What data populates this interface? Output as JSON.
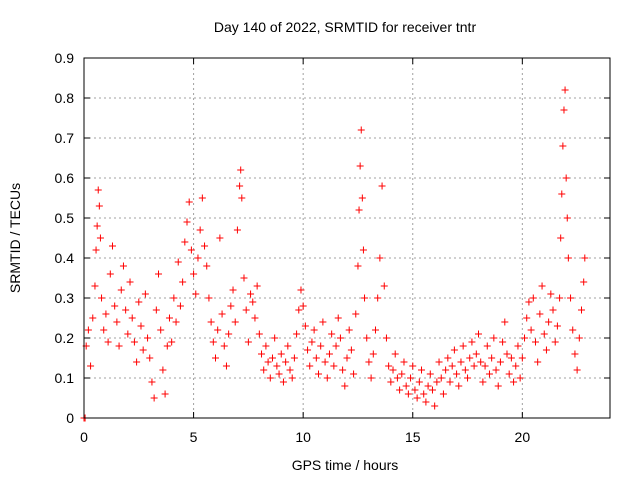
{
  "chart_data": {
    "type": "scatter",
    "title": "Day 140 of 2022, SRMTID for receiver tntr",
    "xlabel": "GPS time / hours",
    "ylabel": "SRMTID / TECUs",
    "xlim": [
      0,
      24
    ],
    "ylim": [
      0,
      0.9
    ],
    "xticks": [
      0,
      5,
      10,
      15,
      20
    ],
    "xtick_labels": [
      "0",
      "5",
      "10",
      "15",
      "20"
    ],
    "yticks": [
      0,
      0.1,
      0.2,
      0.3,
      0.4,
      0.5,
      0.6,
      0.7,
      0.8,
      0.9
    ],
    "ytick_labels": [
      "0",
      "0.1",
      "0.2",
      "0.3",
      "0.4",
      "0.5",
      "0.6",
      "0.7",
      "0.8",
      "0.9"
    ],
    "grid": true,
    "marker": "+",
    "series": [
      {
        "name": "SRMTID",
        "color": "#ff0000",
        "points": [
          [
            0.0,
            0.0
          ],
          [
            0.05,
            0.0
          ],
          [
            0.1,
            0.18
          ],
          [
            0.2,
            0.22
          ],
          [
            0.3,
            0.13
          ],
          [
            0.4,
            0.25
          ],
          [
            0.5,
            0.33
          ],
          [
            0.55,
            0.42
          ],
          [
            0.6,
            0.48
          ],
          [
            0.65,
            0.57
          ],
          [
            0.7,
            0.53
          ],
          [
            0.75,
            0.45
          ],
          [
            0.8,
            0.3
          ],
          [
            0.9,
            0.22
          ],
          [
            1.0,
            0.26
          ],
          [
            1.1,
            0.19
          ],
          [
            1.2,
            0.36
          ],
          [
            1.3,
            0.43
          ],
          [
            1.4,
            0.28
          ],
          [
            1.5,
            0.24
          ],
          [
            1.6,
            0.18
          ],
          [
            1.7,
            0.32
          ],
          [
            1.8,
            0.38
          ],
          [
            1.9,
            0.27
          ],
          [
            2.0,
            0.21
          ],
          [
            2.1,
            0.34
          ],
          [
            2.2,
            0.25
          ],
          [
            2.3,
            0.19
          ],
          [
            2.4,
            0.14
          ],
          [
            2.5,
            0.29
          ],
          [
            2.6,
            0.23
          ],
          [
            2.7,
            0.17
          ],
          [
            2.8,
            0.31
          ],
          [
            2.9,
            0.2
          ],
          [
            3.0,
            0.15
          ],
          [
            3.1,
            0.09
          ],
          [
            3.2,
            0.05
          ],
          [
            3.3,
            0.27
          ],
          [
            3.4,
            0.36
          ],
          [
            3.5,
            0.22
          ],
          [
            3.6,
            0.12
          ],
          [
            3.7,
            0.06
          ],
          [
            3.8,
            0.18
          ],
          [
            3.9,
            0.25
          ],
          [
            4.0,
            0.19
          ],
          [
            4.1,
            0.3
          ],
          [
            4.2,
            0.24
          ],
          [
            4.3,
            0.39
          ],
          [
            4.4,
            0.28
          ],
          [
            4.5,
            0.34
          ],
          [
            4.6,
            0.44
          ],
          [
            4.7,
            0.49
          ],
          [
            4.8,
            0.54
          ],
          [
            4.9,
            0.42
          ],
          [
            5.0,
            0.36
          ],
          [
            5.1,
            0.31
          ],
          [
            5.2,
            0.4
          ],
          [
            5.3,
            0.47
          ],
          [
            5.4,
            0.55
          ],
          [
            5.5,
            0.43
          ],
          [
            5.6,
            0.38
          ],
          [
            5.7,
            0.3
          ],
          [
            5.8,
            0.24
          ],
          [
            5.9,
            0.19
          ],
          [
            6.0,
            0.15
          ],
          [
            6.1,
            0.22
          ],
          [
            6.2,
            0.45
          ],
          [
            6.3,
            0.26
          ],
          [
            6.4,
            0.18
          ],
          [
            6.5,
            0.13
          ],
          [
            6.6,
            0.21
          ],
          [
            6.7,
            0.28
          ],
          [
            6.8,
            0.32
          ],
          [
            6.9,
            0.24
          ],
          [
            7.0,
            0.47
          ],
          [
            7.1,
            0.58
          ],
          [
            7.15,
            0.62
          ],
          [
            7.2,
            0.55
          ],
          [
            7.3,
            0.35
          ],
          [
            7.4,
            0.27
          ],
          [
            7.5,
            0.19
          ],
          [
            7.6,
            0.31
          ],
          [
            7.7,
            0.29
          ],
          [
            7.8,
            0.25
          ],
          [
            7.9,
            0.33
          ],
          [
            8.0,
            0.21
          ],
          [
            8.1,
            0.16
          ],
          [
            8.2,
            0.12
          ],
          [
            8.3,
            0.18
          ],
          [
            8.4,
            0.14
          ],
          [
            8.5,
            0.1
          ],
          [
            8.6,
            0.15
          ],
          [
            8.7,
            0.2
          ],
          [
            8.8,
            0.13
          ],
          [
            8.9,
            0.11
          ],
          [
            9.0,
            0.16
          ],
          [
            9.1,
            0.09
          ],
          [
            9.2,
            0.14
          ],
          [
            9.3,
            0.18
          ],
          [
            9.4,
            0.12
          ],
          [
            9.5,
            0.1
          ],
          [
            9.6,
            0.15
          ],
          [
            9.7,
            0.21
          ],
          [
            9.8,
            0.27
          ],
          [
            9.9,
            0.32
          ],
          [
            10.0,
            0.28
          ],
          [
            10.1,
            0.23
          ],
          [
            10.2,
            0.17
          ],
          [
            10.3,
            0.13
          ],
          [
            10.4,
            0.19
          ],
          [
            10.5,
            0.22
          ],
          [
            10.6,
            0.15
          ],
          [
            10.7,
            0.11
          ],
          [
            10.8,
            0.18
          ],
          [
            10.9,
            0.24
          ],
          [
            11.0,
            0.14
          ],
          [
            11.1,
            0.1
          ],
          [
            11.2,
            0.16
          ],
          [
            11.3,
            0.21
          ],
          [
            11.4,
            0.13
          ],
          [
            11.5,
            0.18
          ],
          [
            11.6,
            0.25
          ],
          [
            11.7,
            0.2
          ],
          [
            11.8,
            0.12
          ],
          [
            11.9,
            0.08
          ],
          [
            12.0,
            0.15
          ],
          [
            12.1,
            0.22
          ],
          [
            12.2,
            0.17
          ],
          [
            12.3,
            0.11
          ],
          [
            12.4,
            0.26
          ],
          [
            12.5,
            0.38
          ],
          [
            12.55,
            0.52
          ],
          [
            12.6,
            0.63
          ],
          [
            12.65,
            0.72
          ],
          [
            12.7,
            0.55
          ],
          [
            12.75,
            0.42
          ],
          [
            12.8,
            0.3
          ],
          [
            12.9,
            0.2
          ],
          [
            13.0,
            0.14
          ],
          [
            13.1,
            0.1
          ],
          [
            13.2,
            0.16
          ],
          [
            13.3,
            0.22
          ],
          [
            13.4,
            0.3
          ],
          [
            13.5,
            0.4
          ],
          [
            13.6,
            0.58
          ],
          [
            13.7,
            0.33
          ],
          [
            13.8,
            0.2
          ],
          [
            13.9,
            0.13
          ],
          [
            14.0,
            0.09
          ],
          [
            14.1,
            0.12
          ],
          [
            14.2,
            0.16
          ],
          [
            14.3,
            0.1
          ],
          [
            14.4,
            0.07
          ],
          [
            14.5,
            0.11
          ],
          [
            14.6,
            0.14
          ],
          [
            14.7,
            0.08
          ],
          [
            14.8,
            0.06
          ],
          [
            14.9,
            0.1
          ],
          [
            15.0,
            0.13
          ],
          [
            15.1,
            0.07
          ],
          [
            15.2,
            0.05
          ],
          [
            15.3,
            0.09
          ],
          [
            15.4,
            0.12
          ],
          [
            15.5,
            0.06
          ],
          [
            15.6,
            0.04
          ],
          [
            15.7,
            0.08
          ],
          [
            15.8,
            0.11
          ],
          [
            15.9,
            0.07
          ],
          [
            16.0,
            0.03
          ],
          [
            16.1,
            0.09
          ],
          [
            16.2,
            0.14
          ],
          [
            16.3,
            0.1
          ],
          [
            16.4,
            0.06
          ],
          [
            16.5,
            0.12
          ],
          [
            16.6,
            0.15
          ],
          [
            16.7,
            0.09
          ],
          [
            16.8,
            0.13
          ],
          [
            16.9,
            0.17
          ],
          [
            17.0,
            0.11
          ],
          [
            17.1,
            0.08
          ],
          [
            17.2,
            0.14
          ],
          [
            17.3,
            0.18
          ],
          [
            17.4,
            0.12
          ],
          [
            17.5,
            0.1
          ],
          [
            17.6,
            0.15
          ],
          [
            17.7,
            0.19
          ],
          [
            17.8,
            0.13
          ],
          [
            17.9,
            0.16
          ],
          [
            18.0,
            0.21
          ],
          [
            18.1,
            0.14
          ],
          [
            18.2,
            0.09
          ],
          [
            18.3,
            0.13
          ],
          [
            18.4,
            0.18
          ],
          [
            18.5,
            0.11
          ],
          [
            18.6,
            0.15
          ],
          [
            18.7,
            0.2
          ],
          [
            18.8,
            0.12
          ],
          [
            18.9,
            0.08
          ],
          [
            19.0,
            0.14
          ],
          [
            19.1,
            0.19
          ],
          [
            19.2,
            0.24
          ],
          [
            19.3,
            0.16
          ],
          [
            19.4,
            0.11
          ],
          [
            19.5,
            0.15
          ],
          [
            19.6,
            0.09
          ],
          [
            19.7,
            0.13
          ],
          [
            19.8,
            0.18
          ],
          [
            19.9,
            0.1
          ],
          [
            20.0,
            0.15
          ],
          [
            20.1,
            0.2
          ],
          [
            20.2,
            0.25
          ],
          [
            20.3,
            0.29
          ],
          [
            20.4,
            0.22
          ],
          [
            20.5,
            0.3
          ],
          [
            20.6,
            0.19
          ],
          [
            20.7,
            0.14
          ],
          [
            20.8,
            0.26
          ],
          [
            20.9,
            0.33
          ],
          [
            21.0,
            0.21
          ],
          [
            21.1,
            0.17
          ],
          [
            21.2,
            0.24
          ],
          [
            21.3,
            0.31
          ],
          [
            21.4,
            0.27
          ],
          [
            21.5,
            0.19
          ],
          [
            21.6,
            0.23
          ],
          [
            21.7,
            0.3
          ],
          [
            21.75,
            0.45
          ],
          [
            21.8,
            0.56
          ],
          [
            21.85,
            0.68
          ],
          [
            21.9,
            0.77
          ],
          [
            21.95,
            0.82
          ],
          [
            22.0,
            0.6
          ],
          [
            22.05,
            0.5
          ],
          [
            22.1,
            0.4
          ],
          [
            22.2,
            0.3
          ],
          [
            22.3,
            0.22
          ],
          [
            22.4,
            0.16
          ],
          [
            22.5,
            0.12
          ],
          [
            22.6,
            0.2
          ],
          [
            22.7,
            0.27
          ],
          [
            22.8,
            0.34
          ],
          [
            22.85,
            0.4
          ]
        ]
      }
    ]
  }
}
